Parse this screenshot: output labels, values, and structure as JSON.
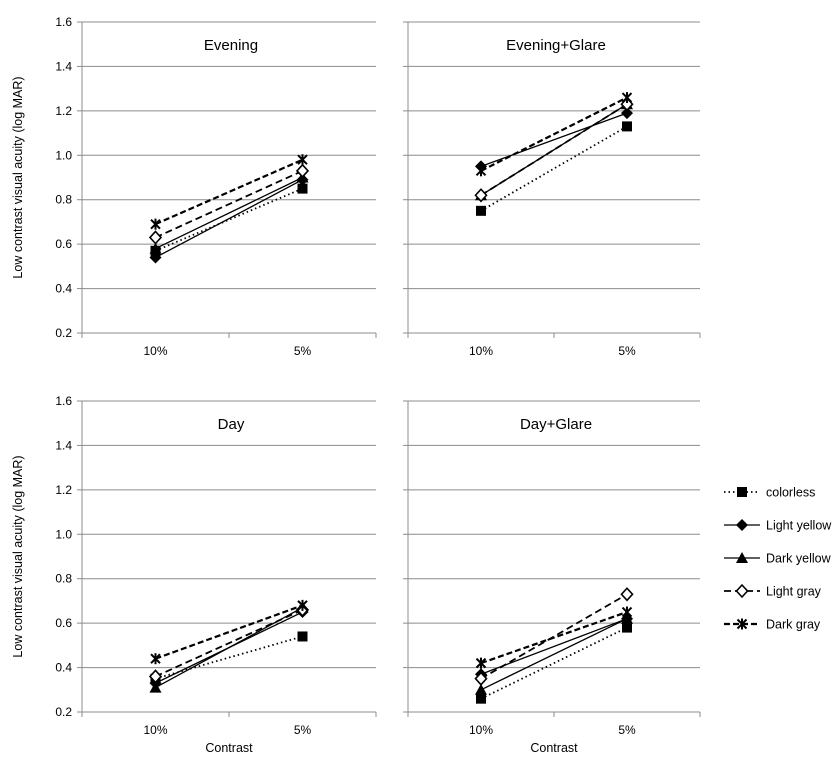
{
  "y_axis_label": "Low contrast visual acuity (log MAR)",
  "x_axis_label": "Contrast",
  "legend": [
    {
      "name": "colorless",
      "style": "dotted",
      "marker": "square-filled"
    },
    {
      "name": "Light yellow",
      "style": "solid",
      "marker": "diamond-filled"
    },
    {
      "name": "Dark yellow",
      "style": "solid",
      "marker": "triangle-filled"
    },
    {
      "name": "Light gray",
      "style": "dashed",
      "marker": "diamond-open"
    },
    {
      "name": "Dark gray",
      "style": "dashed-bold",
      "marker": "star"
    }
  ],
  "chart_data": [
    {
      "type": "line",
      "title": "Evening",
      "categories": [
        "10%",
        "5%"
      ],
      "ylim": [
        0.2,
        1.6
      ],
      "yticks": [
        "0.2",
        "0.4",
        "0.6",
        "0.8",
        "1.0",
        "1.2",
        "1.4",
        "1.6"
      ],
      "ylabel": "Low contrast visual acuity (log MAR)",
      "xlabel": "",
      "series": [
        {
          "name": "colorless",
          "values": [
            0.57,
            0.85
          ]
        },
        {
          "name": "Light yellow",
          "values": [
            0.54,
            0.89
          ]
        },
        {
          "name": "Dark yellow",
          "values": [
            0.58,
            0.9
          ]
        },
        {
          "name": "Light gray",
          "values": [
            0.63,
            0.93
          ]
        },
        {
          "name": "Dark gray",
          "values": [
            0.69,
            0.98
          ]
        }
      ]
    },
    {
      "type": "line",
      "title": "Evening+Glare",
      "categories": [
        "10%",
        "5%"
      ],
      "ylim": [
        0.2,
        1.6
      ],
      "yticks": [],
      "ylabel": "",
      "xlabel": "",
      "series": [
        {
          "name": "colorless",
          "values": [
            0.75,
            1.13
          ]
        },
        {
          "name": "Light yellow",
          "values": [
            0.95,
            1.19
          ]
        },
        {
          "name": "Dark yellow",
          "values": [
            0.82,
            1.23
          ]
        },
        {
          "name": "Light gray",
          "values": [
            0.82,
            1.23
          ]
        },
        {
          "name": "Dark gray",
          "values": [
            0.93,
            1.26
          ]
        }
      ]
    },
    {
      "type": "line",
      "title": "Day",
      "categories": [
        "10%",
        "5%"
      ],
      "ylim": [
        0.2,
        1.6
      ],
      "yticks": [
        "0.2",
        "0.4",
        "0.6",
        "0.8",
        "1.0",
        "1.2",
        "1.4",
        "1.6"
      ],
      "ylabel": "Low contrast visual acuity (log MAR)",
      "xlabel": "Contrast",
      "series": [
        {
          "name": "colorless",
          "values": [
            0.35,
            0.54
          ]
        },
        {
          "name": "Light yellow",
          "values": [
            0.33,
            0.65
          ]
        },
        {
          "name": "Dark yellow",
          "values": [
            0.31,
            0.67
          ]
        },
        {
          "name": "Light gray",
          "values": [
            0.36,
            0.66
          ]
        },
        {
          "name": "Dark gray",
          "values": [
            0.44,
            0.68
          ]
        }
      ]
    },
    {
      "type": "line",
      "title": "Day+Glare",
      "categories": [
        "10%",
        "5%"
      ],
      "ylim": [
        0.2,
        1.6
      ],
      "yticks": [],
      "ylabel": "",
      "xlabel": "Contrast",
      "series": [
        {
          "name": "colorless",
          "values": [
            0.26,
            0.58
          ]
        },
        {
          "name": "Light yellow",
          "values": [
            0.37,
            0.62
          ]
        },
        {
          "name": "Dark yellow",
          "values": [
            0.3,
            0.62
          ]
        },
        {
          "name": "Light gray",
          "values": [
            0.35,
            0.73
          ]
        },
        {
          "name": "Dark gray",
          "values": [
            0.42,
            0.65
          ]
        }
      ]
    }
  ]
}
